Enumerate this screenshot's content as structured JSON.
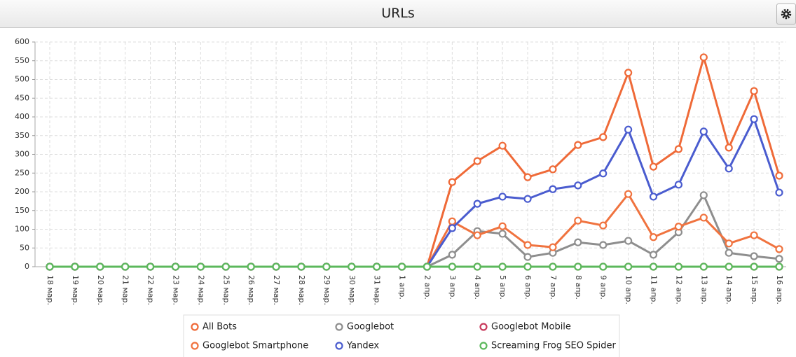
{
  "chart_data": {
    "type": "line",
    "title": "URLs",
    "categories": [
      "18 мар.",
      "19 мар.",
      "20 мар.",
      "21 мар.",
      "22 мар.",
      "23 мар.",
      "24 мар.",
      "25 мар.",
      "26 мар.",
      "27 мар.",
      "28 мар.",
      "29 мар.",
      "30 мар.",
      "31 мар.",
      "1 апр.",
      "2 апр.",
      "3 апр.",
      "4 апр.",
      "5 апр.",
      "6 апр.",
      "7 апр.",
      "8 апр.",
      "9 апр.",
      "10 апр.",
      "11 апр.",
      "12 апр.",
      "13 апр.",
      "14 апр.",
      "15 апр.",
      "16 апр."
    ],
    "series": [
      {
        "name": "All Bots",
        "color": "#ef6a38",
        "values": [
          0,
          0,
          0,
          0,
          0,
          0,
          0,
          0,
          0,
          0,
          0,
          0,
          0,
          0,
          0,
          0,
          226,
          282,
          323,
          239,
          260,
          325,
          346,
          518,
          267,
          314,
          559,
          318,
          469,
          243
        ]
      },
      {
        "name": "Googlebot",
        "color": "#8e8e8e",
        "values": [
          0,
          0,
          0,
          0,
          0,
          0,
          0,
          0,
          0,
          0,
          0,
          0,
          0,
          0,
          0,
          0,
          32,
          95,
          88,
          26,
          37,
          65,
          58,
          69,
          32,
          92,
          191,
          37,
          28,
          21
        ]
      },
      {
        "name": "Googlebot Mobile",
        "color": "#c83a5c",
        "values": [
          0,
          0,
          0,
          0,
          0,
          0,
          0,
          0,
          0,
          0,
          0,
          0,
          0,
          0,
          0,
          0,
          0,
          0,
          0,
          0,
          0,
          0,
          0,
          0,
          0,
          0,
          0,
          0,
          0,
          0
        ]
      },
      {
        "name": "Googlebot Smartphone",
        "color": "#f0733f",
        "values": [
          0,
          0,
          0,
          0,
          0,
          0,
          0,
          0,
          0,
          0,
          0,
          0,
          0,
          0,
          0,
          0,
          121,
          84,
          108,
          58,
          52,
          123,
          110,
          194,
          79,
          107,
          131,
          62,
          84,
          47
        ]
      },
      {
        "name": "Yandex",
        "color": "#4a5ccf",
        "values": [
          0,
          0,
          0,
          0,
          0,
          0,
          0,
          0,
          0,
          0,
          0,
          0,
          0,
          0,
          0,
          0,
          103,
          168,
          187,
          181,
          207,
          217,
          249,
          366,
          187,
          219,
          361,
          262,
          394,
          198
        ]
      },
      {
        "name": "Screaming Frog SEO Spider",
        "color": "#5cb85c",
        "values": [
          0,
          0,
          0,
          0,
          0,
          0,
          0,
          0,
          0,
          0,
          0,
          0,
          0,
          0,
          0,
          0,
          0,
          0,
          0,
          0,
          0,
          0,
          0,
          0,
          0,
          0,
          0,
          0,
          0,
          0
        ]
      }
    ],
    "ylim": [
      0,
      600
    ],
    "yticks": [
      0,
      50,
      100,
      150,
      200,
      250,
      300,
      350,
      400,
      450,
      500,
      550,
      600
    ],
    "grid": true
  }
}
